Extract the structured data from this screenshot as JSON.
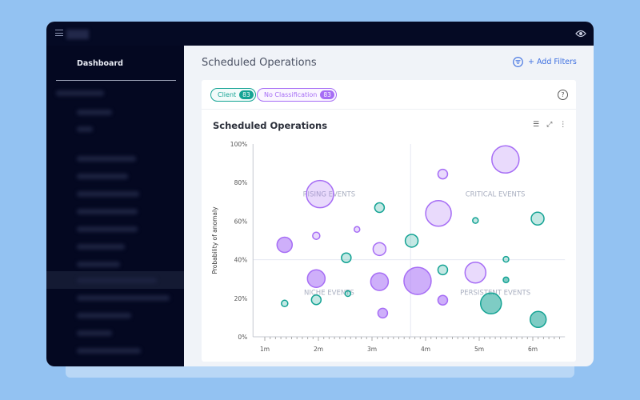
{
  "sidebar": {
    "dashboard_label": "Dashboard"
  },
  "header": {
    "title": "Scheduled Operations",
    "add_filters_label": "+ Add Filters"
  },
  "card": {
    "chips": [
      {
        "label": "Client",
        "count": "83",
        "color": "#14a394"
      },
      {
        "label": "No Classification",
        "count": "83",
        "color": "#a66df5"
      }
    ],
    "title": "Scheduled Operations"
  },
  "chart_data": {
    "type": "scatter",
    "subtype": "bubble",
    "title": "Scheduled Operations",
    "xlabel": "",
    "ylabel": "Probability of anomaly",
    "xlim": [
      0.78,
      6.6
    ],
    "ylim": [
      0,
      100
    ],
    "x_ticks": [
      "1m",
      "2m",
      "3m",
      "4m",
      "5m",
      "6m"
    ],
    "y_ticks": [
      "0%",
      "20%",
      "40%",
      "60%",
      "80%",
      "100%"
    ],
    "quadrant_divider": {
      "x": 3.72,
      "y": 40
    },
    "quadrant_labels": [
      {
        "text": "RISING EVENTS",
        "x": 2.2,
        "y": 74
      },
      {
        "text": "CRITICAL EVENTS",
        "x": 5.3,
        "y": 74
      },
      {
        "text": "NICHE EVENTS",
        "x": 2.2,
        "y": 23
      },
      {
        "text": "PERSISTENT EVENTS",
        "x": 5.3,
        "y": 23
      }
    ],
    "series": [
      {
        "name": "Client",
        "color": "#14a394",
        "points": [
          {
            "x": 3.14,
            "y": 67,
            "size": 6,
            "shade": "light"
          },
          {
            "x": 4.93,
            "y": 60.3,
            "size": 3.5,
            "shade": "light"
          },
          {
            "x": 6.09,
            "y": 61.3,
            "size": 8,
            "shade": "light"
          },
          {
            "x": 3.74,
            "y": 49.8,
            "size": 8,
            "shade": "light"
          },
          {
            "x": 2.52,
            "y": 41,
            "size": 6,
            "shade": "light"
          },
          {
            "x": 5.5,
            "y": 40.2,
            "size": 3.5,
            "shade": "light"
          },
          {
            "x": 4.32,
            "y": 34.7,
            "size": 6,
            "shade": "light"
          },
          {
            "x": 5.5,
            "y": 29.5,
            "size": 3.5,
            "shade": "dark"
          },
          {
            "x": 1.37,
            "y": 17.3,
            "size": 4,
            "shade": "light"
          },
          {
            "x": 1.96,
            "y": 19.2,
            "size": 6,
            "shade": "light"
          },
          {
            "x": 2.55,
            "y": 22.4,
            "size": 3.5,
            "shade": "light"
          },
          {
            "x": 5.22,
            "y": 17.3,
            "size": 13,
            "shade": "dark"
          },
          {
            "x": 6.1,
            "y": 9,
            "size": 10,
            "shade": "dark"
          }
        ]
      },
      {
        "name": "No Classification",
        "color": "#a66df5",
        "points": [
          {
            "x": 5.49,
            "y": 92,
            "size": 17,
            "shade": "light"
          },
          {
            "x": 4.32,
            "y": 84.4,
            "size": 6,
            "shade": "light"
          },
          {
            "x": 2.03,
            "y": 74,
            "size": 17,
            "shade": "light"
          },
          {
            "x": 4.24,
            "y": 64,
            "size": 16,
            "shade": "light"
          },
          {
            "x": 2.72,
            "y": 55.7,
            "size": 3.5,
            "shade": "light"
          },
          {
            "x": 1.96,
            "y": 52.4,
            "size": 4.5,
            "shade": "light"
          },
          {
            "x": 1.37,
            "y": 47.7,
            "size": 9.5,
            "shade": "dark"
          },
          {
            "x": 3.14,
            "y": 45.5,
            "size": 8,
            "shade": "light"
          },
          {
            "x": 1.96,
            "y": 30.2,
            "size": 11,
            "shade": "dark"
          },
          {
            "x": 3.14,
            "y": 28.6,
            "size": 11,
            "shade": "dark"
          },
          {
            "x": 3.85,
            "y": 29,
            "size": 17,
            "shade": "dark"
          },
          {
            "x": 4.93,
            "y": 33.3,
            "size": 13,
            "shade": "light"
          },
          {
            "x": 4.32,
            "y": 19,
            "size": 6,
            "shade": "dark"
          },
          {
            "x": 3.2,
            "y": 12.3,
            "size": 6,
            "shade": "dark"
          }
        ]
      }
    ]
  }
}
